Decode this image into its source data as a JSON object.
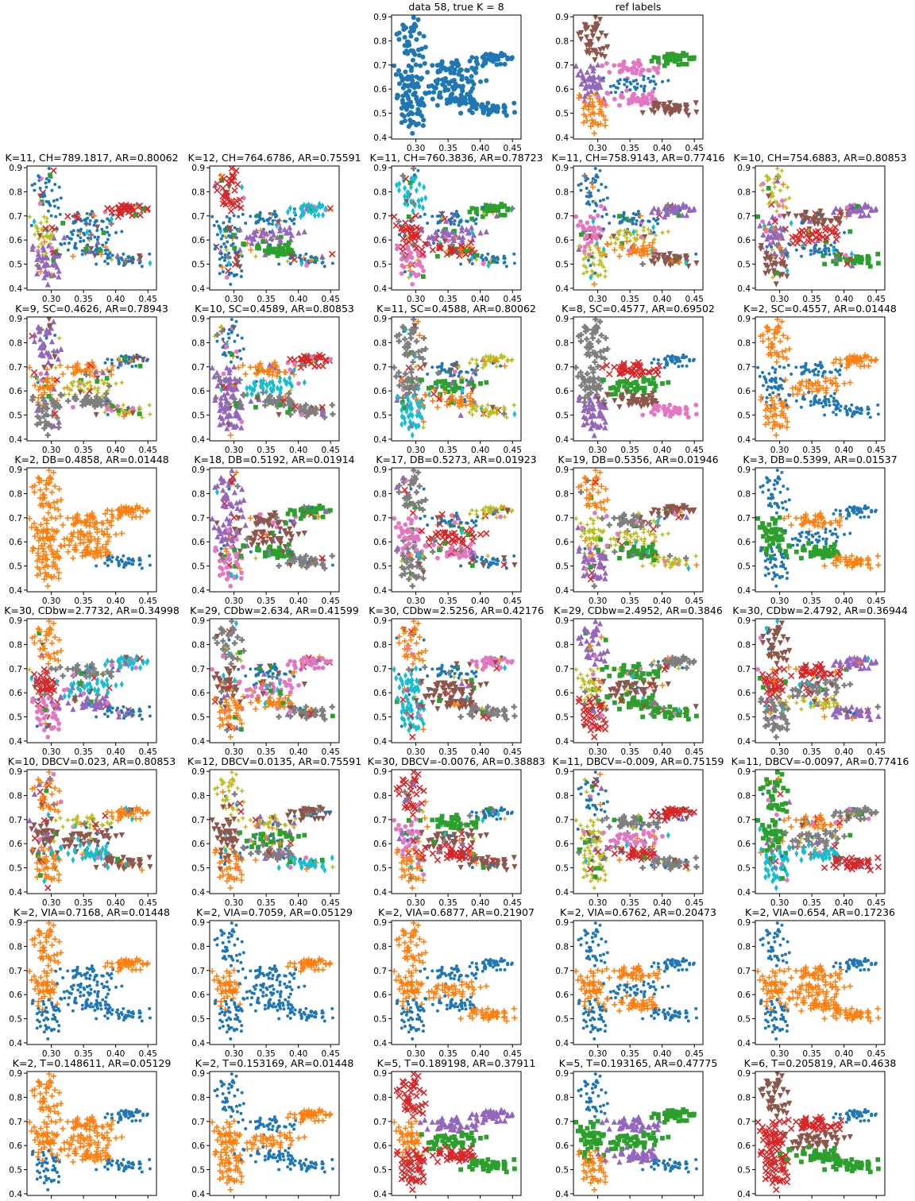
{
  "figure": {
    "colors": [
      "#1f77b4",
      "#ff7f0e",
      "#2ca02c",
      "#d62728",
      "#9467bd",
      "#8c564b",
      "#e377c2",
      "#7f7f7f",
      "#bcbd22",
      "#17becf"
    ],
    "xticks": [
      "0.30",
      "0.35",
      "0.40",
      "0.45"
    ],
    "yticks": [
      "0.4",
      "0.5",
      "0.6",
      "0.7",
      "0.8",
      "0.9"
    ]
  },
  "chart_data": [
    {
      "type": "scatter",
      "title": "data 58, true K = 8",
      "k": 1,
      "seed": 1,
      "marker": "o"
    },
    {
      "type": "scatter",
      "title": "ref labels",
      "k": 8,
      "seed": 2
    },
    {
      "type": "scatter",
      "title": "K=11, CH=789.1817, AR=0.80062",
      "k": 11,
      "seed": 3
    },
    {
      "type": "scatter",
      "title": "K=12, CH=764.6786, AR=0.75591",
      "k": 12,
      "seed": 4
    },
    {
      "type": "scatter",
      "title": "K=11, CH=760.3836, AR=0.78723",
      "k": 11,
      "seed": 5
    },
    {
      "type": "scatter",
      "title": "K=11, CH=758.9143, AR=0.77416",
      "k": 11,
      "seed": 6
    },
    {
      "type": "scatter",
      "title": "K=10, CH=754.6883, AR=0.80853",
      "k": 10,
      "seed": 7
    },
    {
      "type": "scatter",
      "title": "K=9, SC=0.4626, AR=0.78943",
      "k": 9,
      "seed": 8
    },
    {
      "type": "scatter",
      "title": "K=10, SC=0.4589, AR=0.80853",
      "k": 10,
      "seed": 9
    },
    {
      "type": "scatter",
      "title": "K=11, SC=0.4588, AR=0.80062",
      "k": 11,
      "seed": 10
    },
    {
      "type": "scatter",
      "title": "K=8, SC=0.4577, AR=0.69502",
      "k": 8,
      "seed": 11
    },
    {
      "type": "scatter",
      "title": "K=2, SC=0.4557, AR=0.01448",
      "k": 2,
      "seed": 12
    },
    {
      "type": "scatter",
      "title": "K=2, DB=0.4858, AR=0.01448",
      "k": 2,
      "seed": 13
    },
    {
      "type": "scatter",
      "title": "K=18, DB=0.5192, AR=0.01914",
      "k": 18,
      "seed": 14
    },
    {
      "type": "scatter",
      "title": "K=17, DB=0.5273, AR=0.01923",
      "k": 17,
      "seed": 15
    },
    {
      "type": "scatter",
      "title": "K=19, DB=0.5356, AR=0.01946",
      "k": 19,
      "seed": 16
    },
    {
      "type": "scatter",
      "title": "K=3, DB=0.5399, AR=0.01537",
      "k": 3,
      "seed": 17
    },
    {
      "type": "scatter",
      "title": "K=30, CDbw=2.7732, AR=0.34998",
      "k": 30,
      "seed": 18
    },
    {
      "type": "scatter",
      "title": "K=29, CDbw=2.634, AR=0.41599",
      "k": 29,
      "seed": 19
    },
    {
      "type": "scatter",
      "title": "K=30, CDbw=2.5256, AR=0.42176",
      "k": 30,
      "seed": 20
    },
    {
      "type": "scatter",
      "title": "K=29, CDbw=2.4952, AR=0.3846",
      "k": 29,
      "seed": 21
    },
    {
      "type": "scatter",
      "title": "K=30, CDbw=2.4792, AR=0.36944",
      "k": 30,
      "seed": 22
    },
    {
      "type": "scatter",
      "title": "K=10, DBCV=0.023, AR=0.80853",
      "k": 10,
      "seed": 23
    },
    {
      "type": "scatter",
      "title": "K=12, DBCV=0.0135, AR=0.75591",
      "k": 12,
      "seed": 24
    },
    {
      "type": "scatter",
      "title": "K=30, DBCV=-0.0076, AR=0.38883",
      "k": 30,
      "seed": 25
    },
    {
      "type": "scatter",
      "title": "K=11, DBCV=-0.009, AR=0.75159",
      "k": 11,
      "seed": 26
    },
    {
      "type": "scatter",
      "title": "K=11, DBCV=-0.0097, AR=0.77416",
      "k": 11,
      "seed": 27
    },
    {
      "type": "scatter",
      "title": "K=2, VIA=0.7168, AR=0.01448",
      "k": 2,
      "seed": 28
    },
    {
      "type": "scatter",
      "title": "K=2, VIA=0.7059, AR=0.05129",
      "k": 2,
      "seed": 29
    },
    {
      "type": "scatter",
      "title": "K=2, VIA=0.6877, AR=0.21907",
      "k": 2,
      "seed": 30
    },
    {
      "type": "scatter",
      "title": "K=2, VIA=0.6762, AR=0.20473",
      "k": 2,
      "seed": 31
    },
    {
      "type": "scatter",
      "title": "K=2, VIA=0.654, AR=0.17236",
      "k": 2,
      "seed": 32
    },
    {
      "type": "scatter",
      "title": "K=2, T=0.148611, AR=0.05129",
      "k": 2,
      "seed": 33
    },
    {
      "type": "scatter",
      "title": "K=2, T=0.153169, AR=0.01448",
      "k": 2,
      "seed": 34
    },
    {
      "type": "scatter",
      "title": "K=5, T=0.189198, AR=0.37911",
      "k": 5,
      "seed": 35
    },
    {
      "type": "scatter",
      "title": "K=5, T=0.193165, AR=0.47775",
      "k": 5,
      "seed": 36
    },
    {
      "type": "scatter",
      "title": "K=6, T=0.205819, AR=0.4638",
      "k": 6,
      "seed": 37
    }
  ]
}
